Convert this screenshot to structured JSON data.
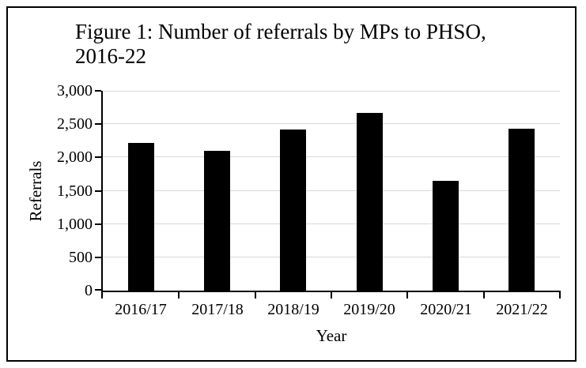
{
  "figure": {
    "title_lines": [
      "Figure 1: Number of referrals by MPs to PHSO,",
      "2016-22"
    ]
  },
  "chart_data": {
    "type": "bar",
    "title": "Figure 1: Number of referrals by MPs to PHSO, 2016-22",
    "categories": [
      "2016/17",
      "2017/18",
      "2018/19",
      "2019/20",
      "2020/21",
      "2021/22"
    ],
    "values": [
      2220,
      2100,
      2420,
      2670,
      1650,
      2430
    ],
    "xlabel": "Year",
    "ylabel": "Referrals",
    "ylim": [
      0,
      3000
    ],
    "yticks": [
      0,
      500,
      1000,
      1500,
      2000,
      2500,
      3000
    ],
    "ytick_labels": [
      "0",
      "500",
      "1,000",
      "1,500",
      "2,000",
      "2,500",
      "3,000"
    ],
    "grid": true,
    "gridline_color": "#d9d9d9",
    "bar_color": "#000000",
    "axis_color": "#000000",
    "legend_position": "none"
  }
}
